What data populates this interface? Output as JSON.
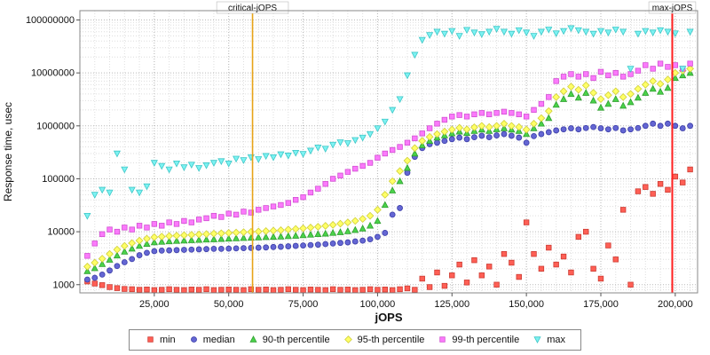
{
  "chart_data": {
    "type": "scatter",
    "title": "",
    "xlabel": "jOPS",
    "ylabel": "Response time, usec",
    "xscale": "linear",
    "yscale": "log",
    "xlim": [
      0,
      207500
    ],
    "ylim": [
      700,
      150000000
    ],
    "grid": {
      "x_step": 5000,
      "minor_color": "#dedede",
      "major_color": "#b8b8b8"
    },
    "xticks": [
      {
        "v": 25000,
        "label": "25,000"
      },
      {
        "v": 50000,
        "label": "50,000"
      },
      {
        "v": 75000,
        "label": "75,000"
      },
      {
        "v": 100000,
        "label": "100,000"
      },
      {
        "v": 125000,
        "label": "125,000"
      },
      {
        "v": 150000,
        "label": "150,000"
      },
      {
        "v": 175000,
        "label": "175,000"
      },
      {
        "v": 200000,
        "label": "200,000"
      }
    ],
    "yticks": [
      {
        "v": 1000,
        "label": "1000"
      },
      {
        "v": 10000,
        "label": "10000"
      },
      {
        "v": 100000,
        "label": "100000"
      },
      {
        "v": 1000000,
        "label": "1000000"
      },
      {
        "v": 10000000,
        "label": "10000000"
      },
      {
        "v": 100000000,
        "label": "100000000"
      }
    ],
    "vlines": [
      {
        "key": "critical-jops",
        "x": 58000,
        "label": "critical-jOPS",
        "color": "#e8a317",
        "width": 1.6
      },
      {
        "key": "max-jops",
        "x": 199000,
        "label": "max-jOPS",
        "color": "#ff1f1f",
        "width": 2
      }
    ],
    "x": [
      2500,
      5000,
      7500,
      10000,
      12500,
      15000,
      17500,
      20000,
      22500,
      25000,
      27500,
      30000,
      32500,
      35000,
      37500,
      40000,
      42500,
      45000,
      47500,
      50000,
      52500,
      55000,
      57500,
      60000,
      62500,
      65000,
      67500,
      70000,
      72500,
      75000,
      77500,
      80000,
      82500,
      85000,
      87500,
      90000,
      92500,
      95000,
      97500,
      100000,
      102500,
      105000,
      107500,
      110000,
      112500,
      115000,
      117500,
      120000,
      122500,
      125000,
      127500,
      130000,
      132500,
      135000,
      137500,
      140000,
      142500,
      145000,
      147500,
      150000,
      152500,
      155000,
      157500,
      160000,
      162500,
      165000,
      167500,
      170000,
      172500,
      175000,
      177500,
      180000,
      182500,
      185000,
      187500,
      190000,
      192500,
      195000,
      197500,
      200000,
      202500,
      205000
    ],
    "series": [
      {
        "key": "min",
        "name": "min",
        "marker": "square",
        "color": "#ff5f55",
        "edge": "#cc3b32",
        "values": [
          1150,
          1050,
          980,
          900,
          860,
          830,
          820,
          800,
          810,
          790,
          800,
          820,
          800,
          790,
          810,
          800,
          820,
          790,
          800,
          810,
          800,
          790,
          820,
          800,
          810,
          790,
          800,
          820,
          800,
          790,
          810,
          800,
          790,
          820,
          800,
          810,
          790,
          800,
          820,
          800,
          810,
          790,
          820,
          850,
          800,
          1300,
          900,
          1700,
          950,
          1500,
          2400,
          1100,
          2900,
          1500,
          2200,
          1000,
          3800,
          2600,
          1400,
          15000,
          3800,
          2000,
          5000,
          2400,
          3400,
          1700,
          8000,
          10000,
          2000,
          1300,
          5500,
          3000,
          26000,
          1000,
          58000,
          70000,
          52000,
          80000,
          62000,
          110000,
          85000,
          150000
        ]
      },
      {
        "key": "median",
        "name": "median",
        "marker": "circle",
        "color": "#6466d3",
        "edge": "#3c3ea8",
        "values": [
          1250,
          1350,
          1550,
          1850,
          2250,
          2650,
          3050,
          3600,
          4000,
          4300,
          4400,
          4450,
          4500,
          4550,
          4600,
          4650,
          4700,
          4750,
          4750,
          4800,
          4850,
          4900,
          4950,
          5000,
          5050,
          5150,
          5200,
          5300,
          5400,
          5500,
          5600,
          5700,
          5850,
          6000,
          6150,
          6300,
          6550,
          6800,
          7200,
          8000,
          9500,
          21000,
          28000,
          130000,
          260000,
          380000,
          450000,
          480000,
          520000,
          560000,
          600000,
          560000,
          610000,
          650000,
          610000,
          660000,
          700000,
          650000,
          600000,
          480000,
          640000,
          700000,
          760000,
          820000,
          860000,
          900000,
          860000,
          910000,
          950000,
          900000,
          860000,
          910000,
          820000,
          860000,
          910000,
          1000000,
          1100000,
          1000000,
          1100000,
          1000000,
          900000,
          1000000
        ]
      },
      {
        "key": "p90",
        "name": "90-th percentile",
        "marker": "triangle-up",
        "color": "#4ad24a",
        "edge": "#2f9e2f",
        "values": [
          1800,
          2050,
          2450,
          2950,
          3550,
          4200,
          4800,
          5400,
          5900,
          6300,
          6450,
          6600,
          6700,
          6800,
          6900,
          7000,
          7100,
          7200,
          7300,
          7400,
          7500,
          7600,
          7700,
          7800,
          7900,
          8000,
          8100,
          8250,
          8400,
          8600,
          8800,
          9000,
          9200,
          9500,
          9800,
          10200,
          10800,
          11500,
          13000,
          16000,
          32000,
          60000,
          90000,
          160000,
          300000,
          430000,
          520000,
          600000,
          660000,
          720000,
          780000,
          730000,
          800000,
          850000,
          800000,
          860000,
          900000,
          850000,
          800000,
          700000,
          900000,
          1100000,
          1400000,
          2500000,
          3200000,
          4000000,
          3400000,
          4200000,
          3000000,
          2200000,
          2600000,
          3200000,
          2400000,
          2800000,
          3400000,
          4200000,
          5000000,
          4400000,
          5200000,
          8000000,
          9000000,
          10000000
        ]
      },
      {
        "key": "p95",
        "name": "95-th percentile",
        "marker": "diamond",
        "color": "#ffff66",
        "edge": "#cfcf3a",
        "values": [
          2200,
          2600,
          3100,
          3800,
          4600,
          5400,
          6100,
          6800,
          7400,
          7900,
          8100,
          8300,
          8450,
          8600,
          8750,
          8900,
          9050,
          9200,
          9350,
          9500,
          9650,
          9800,
          9950,
          10100,
          10300,
          10500,
          10700,
          11000,
          11300,
          11600,
          12000,
          12400,
          12900,
          13500,
          14200,
          15000,
          16000,
          17500,
          20000,
          26000,
          50000,
          90000,
          140000,
          220000,
          380000,
          520000,
          620000,
          700000,
          780000,
          850000,
          920000,
          860000,
          940000,
          1000000,
          950000,
          1000000,
          1100000,
          1000000,
          950000,
          850000,
          1100000,
          1400000,
          1900000,
          3500000,
          4500000,
          5500000,
          4800000,
          5800000,
          4200000,
          3200000,
          3800000,
          4500000,
          3500000,
          4000000,
          5000000,
          6000000,
          7000000,
          6200000,
          7500000,
          10000000,
          11000000,
          12000000
        ]
      },
      {
        "key": "p99",
        "name": "99-th percentile",
        "marker": "square",
        "color": "#fb7afb",
        "edge": "#d14fd1",
        "values": [
          3500,
          6000,
          9000,
          11000,
          10000,
          12000,
          11000,
          13000,
          12000,
          14000,
          13000,
          15000,
          14000,
          16000,
          15000,
          17000,
          18000,
          20000,
          19000,
          22000,
          21000,
          24000,
          23000,
          26000,
          28000,
          30000,
          32000,
          35000,
          40000,
          45000,
          55000,
          65000,
          80000,
          100000,
          115000,
          135000,
          155000,
          175000,
          200000,
          250000,
          300000,
          350000,
          400000,
          480000,
          580000,
          720000,
          900000,
          1100000,
          1300000,
          1500000,
          1600000,
          1500000,
          1650000,
          1750000,
          1650000,
          1750000,
          1850000,
          1750000,
          1650000,
          1500000,
          2000000,
          2600000,
          3500000,
          7000000,
          8500000,
          9500000,
          8500000,
          9500000,
          8000000,
          10500000,
          9000000,
          10000000,
          8500000,
          9500000,
          11000000,
          14000000,
          12000000,
          15000000,
          13000000,
          14000000,
          12000000,
          15000000
        ]
      },
      {
        "key": "max",
        "name": "max",
        "marker": "triangle-down",
        "color": "#7df2f2",
        "edge": "#3ec7c7",
        "values": [
          20000,
          50000,
          62000,
          55000,
          300000,
          150000,
          62000,
          55000,
          72000,
          200000,
          175000,
          150000,
          195000,
          165000,
          185000,
          160000,
          180000,
          200000,
          215000,
          195000,
          240000,
          225000,
          255000,
          235000,
          270000,
          255000,
          290000,
          275000,
          310000,
          295000,
          340000,
          390000,
          370000,
          440000,
          490000,
          470000,
          540000,
          600000,
          700000,
          900000,
          1200000,
          2000000,
          3200000,
          9000000,
          22000000,
          42000000,
          52000000,
          60000000,
          55000000,
          62000000,
          50000000,
          65000000,
          58000000,
          54000000,
          60000000,
          68000000,
          60000000,
          55000000,
          64000000,
          58000000,
          50000000,
          60000000,
          66000000,
          56000000,
          62000000,
          70000000,
          64000000,
          60000000,
          55000000,
          62000000,
          58000000,
          66000000,
          60000000,
          12000000,
          55000000,
          62000000,
          58000000,
          64000000,
          60000000,
          56000000,
          12000000,
          60000000
        ]
      }
    ],
    "legend_position": "bottom"
  }
}
